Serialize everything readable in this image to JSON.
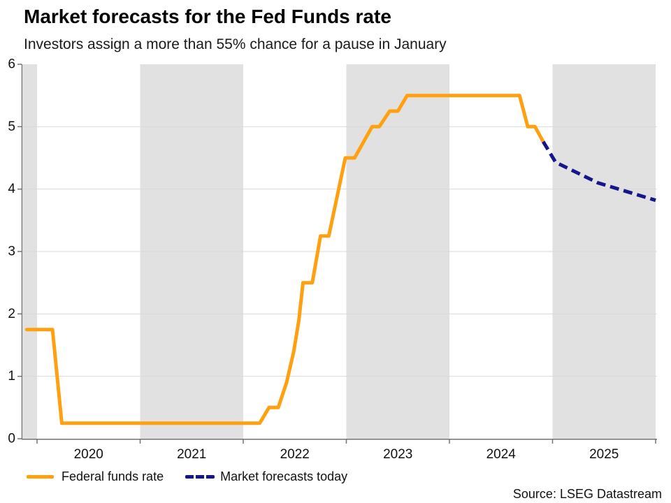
{
  "header": {
    "title": "Market forecasts for the Fed Funds rate",
    "subtitle": "Investors assign a more than 55% chance for a pause in January"
  },
  "footer": {
    "source": "Source: LSEG Datastream"
  },
  "legend": {
    "items": [
      {
        "label": "Federal funds rate",
        "color": "#FFA011",
        "style": "solid"
      },
      {
        "label": "Market forecasts today",
        "color": "#16168C",
        "style": "dashed"
      }
    ]
  },
  "colors": {
    "band": "#E1E1E1",
    "gridline": "#D9D9D9",
    "axis": "#737373",
    "tick_text": "#111111"
  },
  "chart_data": {
    "type": "line",
    "title": "Market forecasts for the Fed Funds rate",
    "subtitle": "Investors assign a more than 55% chance for a pause in January",
    "x_axis": {
      "range": [
        2019.86,
        2026.01
      ],
      "tick_years": [
        2020,
        2021,
        2022,
        2023,
        2024,
        2025,
        2026
      ],
      "year_labels": [
        "2020",
        "2021",
        "2022",
        "2023",
        "2024",
        "2025"
      ]
    },
    "y_axis": {
      "range": [
        0,
        6
      ],
      "ticks": [
        0,
        1,
        2,
        3,
        4,
        5,
        6
      ],
      "gridlines": [
        1,
        2,
        3,
        4,
        5
      ],
      "unit": "percent"
    },
    "shaded_year_bands": [
      2019,
      2021,
      2023,
      2025
    ],
    "legend_position": "bottom-left",
    "series": [
      {
        "name": "Federal funds rate",
        "color": "#FFA011",
        "dashed": false,
        "points": [
          [
            2019.9,
            1.75
          ],
          [
            2020.15,
            1.75
          ],
          [
            2020.24,
            0.25
          ],
          [
            2022.16,
            0.25
          ],
          [
            2022.25,
            0.5
          ],
          [
            2022.34,
            0.5
          ],
          [
            2022.42,
            0.9
          ],
          [
            2022.49,
            1.4
          ],
          [
            2022.54,
            1.9
          ],
          [
            2022.58,
            2.5
          ],
          [
            2022.67,
            2.5
          ],
          [
            2022.75,
            3.25
          ],
          [
            2022.83,
            3.25
          ],
          [
            2022.99,
            4.5
          ],
          [
            2023.08,
            4.5
          ],
          [
            2023.25,
            5.0
          ],
          [
            2023.32,
            5.0
          ],
          [
            2023.42,
            5.25
          ],
          [
            2023.5,
            5.25
          ],
          [
            2023.59,
            5.5
          ],
          [
            2024.68,
            5.5
          ],
          [
            2024.76,
            5.0
          ],
          [
            2024.83,
            5.0
          ],
          [
            2024.91,
            4.76
          ]
        ]
      },
      {
        "name": "Market forecasts today",
        "color": "#16168C",
        "dashed": true,
        "points": [
          [
            2024.91,
            4.76
          ],
          [
            2025.03,
            4.43
          ],
          [
            2025.44,
            4.1
          ],
          [
            2026.0,
            3.82
          ]
        ]
      }
    ]
  }
}
